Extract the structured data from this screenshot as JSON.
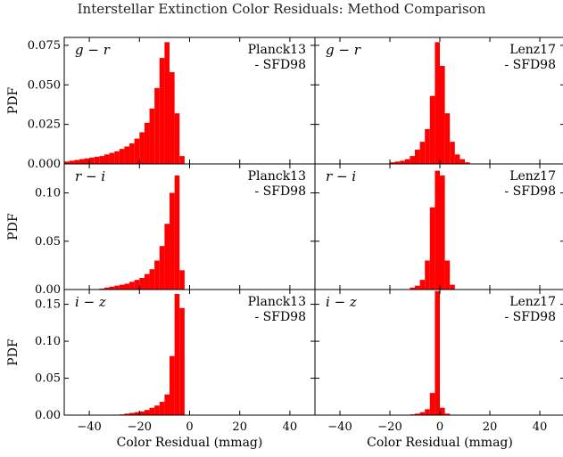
{
  "figure": {
    "title": "Interstellar Extinction Color Residuals: Method Comparison"
  },
  "colors": {
    "bar": "#ff0000",
    "axis": "#000000"
  },
  "chart_data": [
    {
      "type": "bar",
      "panel": "g-r-planck13",
      "label": "g − r",
      "method": [
        "Planck13",
        "- SFD98"
      ],
      "xlabel": "",
      "ylabel": "PDF",
      "xlim": [
        -50,
        50
      ],
      "ylim": [
        0,
        0.08
      ],
      "yticks": [
        0.0,
        0.025,
        0.05,
        0.075
      ],
      "ytick_labels": [
        "0.000",
        "0.025",
        "0.050",
        "0.075"
      ],
      "bin_width": 2,
      "bin_left_edges": [
        -50,
        -48,
        -46,
        -44,
        -42,
        -40,
        -38,
        -36,
        -34,
        -32,
        -30,
        -28,
        -26,
        -24,
        -22,
        -20,
        -18,
        -16,
        -14,
        -12,
        -10,
        -8,
        -6,
        -4
      ],
      "values": [
        0.0015,
        0.002,
        0.0025,
        0.003,
        0.0035,
        0.004,
        0.0045,
        0.005,
        0.006,
        0.007,
        0.008,
        0.0095,
        0.011,
        0.013,
        0.016,
        0.02,
        0.026,
        0.035,
        0.048,
        0.067,
        0.077,
        0.058,
        0.032,
        0.005
      ]
    },
    {
      "type": "bar",
      "panel": "g-r-lenz17",
      "label": "g − r",
      "method": [
        "Lenz17",
        "- SFD98"
      ],
      "xlabel": "",
      "ylabel": "",
      "xlim": [
        -50,
        50
      ],
      "ylim": [
        0,
        0.08
      ],
      "bin_width": 2,
      "bin_left_edges": [
        -20,
        -18,
        -16,
        -14,
        -12,
        -10,
        -8,
        -6,
        -4,
        -2,
        0,
        2,
        4,
        6,
        8,
        10
      ],
      "values": [
        0.001,
        0.0015,
        0.002,
        0.003,
        0.005,
        0.009,
        0.014,
        0.022,
        0.043,
        0.077,
        0.062,
        0.032,
        0.014,
        0.006,
        0.003,
        0.001
      ]
    },
    {
      "type": "bar",
      "panel": "r-i-planck13",
      "label": "r − i",
      "method": [
        "Planck13",
        "- SFD98"
      ],
      "xlabel": "",
      "ylabel": "PDF",
      "xlim": [
        -50,
        50
      ],
      "ylim": [
        0,
        0.13
      ],
      "yticks": [
        0.0,
        0.05,
        0.1
      ],
      "ytick_labels": [
        "0.00",
        "0.05",
        "0.10"
      ],
      "bin_width": 2,
      "bin_left_edges": [
        -36,
        -34,
        -32,
        -30,
        -28,
        -26,
        -24,
        -22,
        -20,
        -18,
        -16,
        -14,
        -12,
        -10,
        -8,
        -6,
        -4
      ],
      "values": [
        0.001,
        0.002,
        0.003,
        0.004,
        0.005,
        0.006,
        0.008,
        0.01,
        0.012,
        0.016,
        0.021,
        0.03,
        0.045,
        0.068,
        0.1,
        0.118,
        0.02
      ]
    },
    {
      "type": "bar",
      "panel": "r-i-lenz17",
      "label": "r − i",
      "method": [
        "Lenz17",
        "- SFD98"
      ],
      "xlabel": "",
      "ylabel": "",
      "xlim": [
        -50,
        50
      ],
      "ylim": [
        0,
        0.13
      ],
      "bin_width": 2,
      "bin_left_edges": [
        -12,
        -10,
        -8,
        -6,
        -4,
        -2,
        0,
        2,
        4
      ],
      "values": [
        0.002,
        0.004,
        0.01,
        0.03,
        0.085,
        0.123,
        0.118,
        0.03,
        0.005
      ]
    },
    {
      "type": "bar",
      "panel": "i-z-planck13",
      "label": "i − z",
      "method": [
        "Planck13",
        "- SFD98"
      ],
      "xlabel": "Color Residual (mmag)",
      "ylabel": "PDF",
      "xlim": [
        -50,
        50
      ],
      "ylim": [
        0,
        0.17
      ],
      "yticks": [
        0.0,
        0.05,
        0.1,
        0.15
      ],
      "ytick_labels": [
        "0.00",
        "0.05",
        "0.10",
        "0.15"
      ],
      "xticks": [
        -40,
        -20,
        0,
        20,
        40
      ],
      "xtick_labels": [
        "−40",
        "−20",
        "0",
        "20",
        "40"
      ],
      "bin_width": 2,
      "bin_left_edges": [
        -28,
        -26,
        -24,
        -22,
        -20,
        -18,
        -16,
        -14,
        -12,
        -10,
        -8,
        -6,
        -4
      ],
      "values": [
        0.001,
        0.002,
        0.003,
        0.004,
        0.005,
        0.007,
        0.01,
        0.013,
        0.018,
        0.028,
        0.08,
        0.164,
        0.145
      ]
    },
    {
      "type": "bar",
      "panel": "i-z-lenz17",
      "label": "i − z",
      "method": [
        "Lenz17",
        "- SFD98"
      ],
      "xlabel": "Color Residual (mmag)",
      "ylabel": "",
      "xlim": [
        -50,
        50
      ],
      "ylim": [
        0,
        0.17
      ],
      "xticks": [
        -40,
        -20,
        0,
        20,
        40
      ],
      "xtick_labels": [
        "−40",
        "−20",
        "0",
        "20",
        "40"
      ],
      "bin_width": 2,
      "bin_left_edges": [
        -12,
        -10,
        -8,
        -6,
        -4,
        -2,
        0,
        2
      ],
      "values": [
        0.001,
        0.002,
        0.004,
        0.008,
        0.03,
        0.168,
        0.01,
        0.002
      ]
    }
  ]
}
